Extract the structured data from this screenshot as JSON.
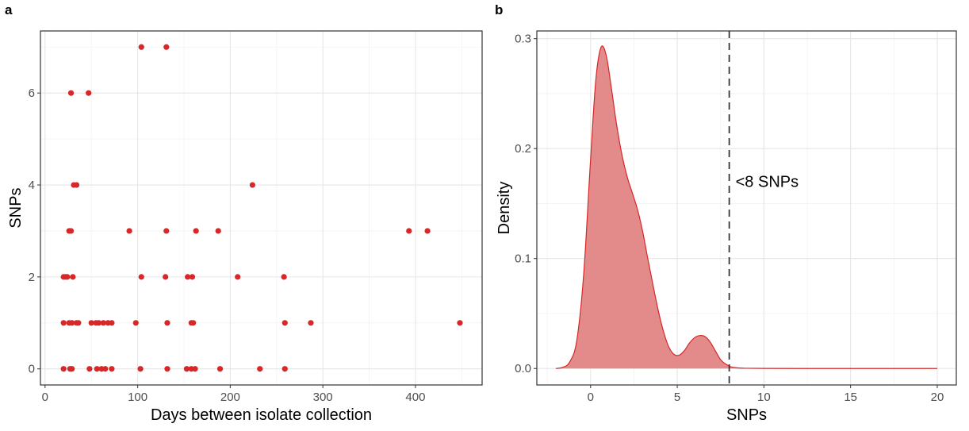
{
  "chart_data": [
    {
      "panel": "a",
      "type": "scatter",
      "title": "",
      "xlabel": "Days between isolate collection",
      "ylabel": "SNPs",
      "xlim": [
        -5,
        472
      ],
      "ylim": [
        -0.35,
        7.35
      ],
      "xticks": [
        0,
        100,
        200,
        300,
        400
      ],
      "yticks": [
        0,
        2,
        4,
        6
      ],
      "grid": true,
      "point_color": "#d62828",
      "points": [
        [
          104,
          7
        ],
        [
          131,
          7
        ],
        [
          28,
          6
        ],
        [
          47,
          6
        ],
        [
          31,
          4
        ],
        [
          34,
          4
        ],
        [
          224,
          4
        ],
        [
          26,
          3
        ],
        [
          28,
          3
        ],
        [
          91,
          3
        ],
        [
          131,
          3
        ],
        [
          163,
          3
        ],
        [
          187,
          3
        ],
        [
          393,
          3
        ],
        [
          413,
          3
        ],
        [
          20,
          2
        ],
        [
          22,
          2
        ],
        [
          24,
          2
        ],
        [
          30,
          2
        ],
        [
          104,
          2
        ],
        [
          130,
          2
        ],
        [
          154,
          2
        ],
        [
          159,
          2
        ],
        [
          208,
          2
        ],
        [
          258,
          2
        ],
        [
          20,
          1
        ],
        [
          26,
          1
        ],
        [
          29,
          1
        ],
        [
          34,
          1
        ],
        [
          36,
          1
        ],
        [
          50,
          1
        ],
        [
          55,
          1
        ],
        [
          58,
          1
        ],
        [
          63,
          1
        ],
        [
          68,
          1
        ],
        [
          72,
          1
        ],
        [
          98,
          1
        ],
        [
          132,
          1
        ],
        [
          158,
          1
        ],
        [
          160,
          1
        ],
        [
          259,
          1
        ],
        [
          287,
          1
        ],
        [
          448,
          1
        ],
        [
          20,
          0
        ],
        [
          27,
          0
        ],
        [
          29,
          0
        ],
        [
          48,
          0
        ],
        [
          56,
          0
        ],
        [
          61,
          0
        ],
        [
          65,
          0
        ],
        [
          72,
          0
        ],
        [
          103,
          0
        ],
        [
          132,
          0
        ],
        [
          153,
          0
        ],
        [
          158,
          0
        ],
        [
          162,
          0
        ],
        [
          189,
          0
        ],
        [
          232,
          0
        ],
        [
          259,
          0
        ]
      ]
    },
    {
      "panel": "b",
      "type": "area",
      "title": "",
      "xlabel": "SNPs",
      "ylabel": "Density",
      "xlim": [
        -3.1,
        21.1
      ],
      "ylim": [
        -0.015,
        0.307
      ],
      "xticks": [
        0,
        5,
        10,
        15,
        20
      ],
      "yticks": [
        0.0,
        0.1,
        0.2,
        0.3
      ],
      "ytick_labels": [
        "0.0",
        "0.1",
        "0.2",
        "0.3"
      ],
      "grid": true,
      "fill_color": "#e38a8a",
      "line_color": "#d62828",
      "x": [
        -2.0,
        -1.6,
        -1.2,
        -0.8,
        -0.4,
        0.0,
        0.3,
        0.6,
        0.9,
        1.2,
        1.5,
        1.8,
        2.1,
        2.4,
        2.7,
        3.0,
        3.3,
        3.6,
        3.9,
        4.2,
        4.5,
        4.8,
        5.1,
        5.4,
        5.7,
        6.0,
        6.3,
        6.6,
        6.9,
        7.2,
        7.5,
        7.8,
        8.1,
        8.5,
        9.0,
        10.0,
        12.0,
        15.0,
        20.0
      ],
      "y": [
        0.0,
        0.001,
        0.006,
        0.025,
        0.085,
        0.19,
        0.262,
        0.292,
        0.285,
        0.255,
        0.222,
        0.195,
        0.175,
        0.16,
        0.145,
        0.125,
        0.1,
        0.076,
        0.053,
        0.034,
        0.02,
        0.013,
        0.012,
        0.016,
        0.023,
        0.028,
        0.03,
        0.029,
        0.024,
        0.016,
        0.008,
        0.004,
        0.0015,
        0.0005,
        0.0002,
        0.0001,
        0.0,
        0.0,
        0.0
      ],
      "vline": {
        "x": 8,
        "style": "dashed",
        "label": "<8 SNPs"
      }
    }
  ]
}
